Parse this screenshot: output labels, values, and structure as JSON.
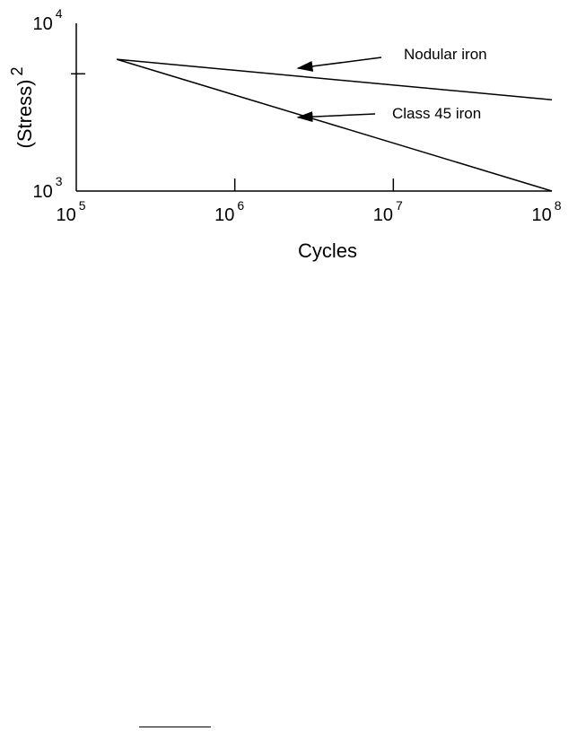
{
  "chart_data": {
    "type": "line",
    "xlabel": "Cycles",
    "ylabel": "(Stress)",
    "ylabel_superscript": "2",
    "x_scale": "log",
    "y_scale": "log",
    "xlim": [
      100000,
      100000000
    ],
    "ylim": [
      1000,
      10000
    ],
    "grid": false,
    "x_ticks": [
      {
        "base": "10",
        "exp": "5",
        "value": 100000
      },
      {
        "base": "10",
        "exp": "6",
        "value": 1000000
      },
      {
        "base": "10",
        "exp": "7",
        "value": 10000000
      },
      {
        "base": "10",
        "exp": "8",
        "value": 100000000
      }
    ],
    "y_ticks": [
      {
        "base": "10",
        "exp": "3",
        "value": 1000
      },
      {
        "base": "10",
        "exp": "4",
        "value": 10000
      }
    ],
    "y_minor_ticks": [
      5000
    ],
    "series": [
      {
        "name": "Nodular iron",
        "x": [
          180000,
          100000000
        ],
        "y": [
          6100,
          3500
        ]
      },
      {
        "name": "Class 45 iron",
        "x": [
          180000,
          100000000
        ],
        "y": [
          6100,
          1000
        ]
      }
    ],
    "annotations": [
      {
        "text": "Nodular iron",
        "series": "Nodular iron",
        "arrow_to": {
          "x": 2500000,
          "y": 5400
        }
      },
      {
        "text": "Class 45 iron",
        "series": "Class 45 iron",
        "arrow_to": {
          "x": 2500000,
          "y": 2750
        }
      }
    ]
  }
}
